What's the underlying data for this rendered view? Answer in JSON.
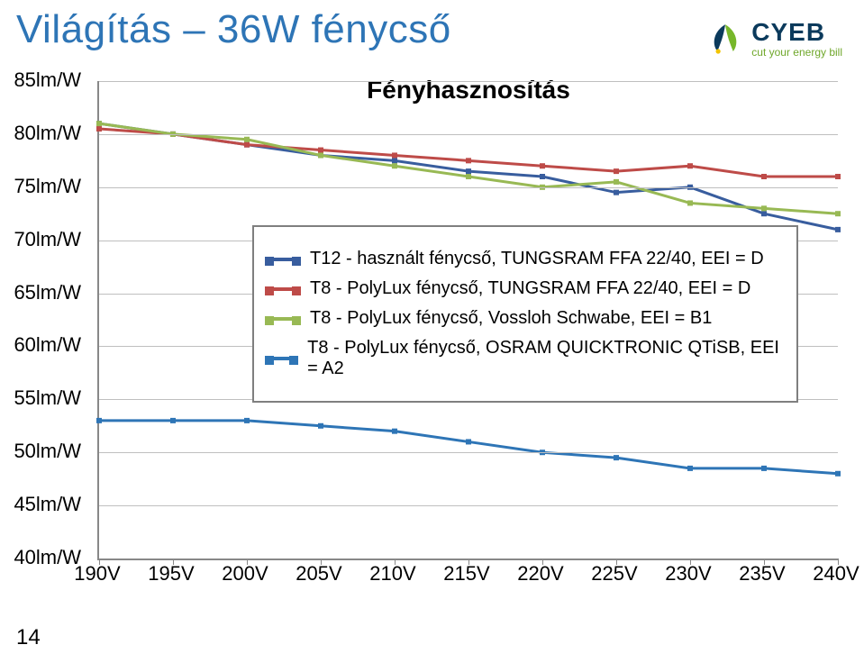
{
  "title": {
    "text": "Világítás – 36W fénycső",
    "color": "#2E75B6",
    "fontsize": 44
  },
  "logo": {
    "brand": "CYEB",
    "sub": "cut your energy bill",
    "brand_color": "#0b3a5c",
    "sub_color": "#6fa72a",
    "leaf_blue": "#0b3a5c",
    "leaf_green": "#77b72a",
    "dot_yellow": "#f2c400"
  },
  "page_number": "14",
  "chart": {
    "title": "Fényhasznosítás",
    "y_ticks": [
      "85lm/W",
      "80lm/W",
      "75lm/W",
      "70lm/W",
      "65lm/W",
      "60lm/W",
      "55lm/W",
      "50lm/W",
      "45lm/W",
      "40lm/W"
    ],
    "x_ticks": [
      "190V",
      "195V",
      "200V",
      "205V",
      "210V",
      "215V",
      "220V",
      "225V",
      "230V",
      "235V",
      "240V"
    ],
    "ylim": [
      40,
      85
    ],
    "xlim": [
      190,
      240
    ],
    "grid_color": "#bfbfbf",
    "axis_color": "#888888",
    "background": "#ffffff",
    "label_fontsize": 22,
    "title_fontsize": 28,
    "line_width": 3,
    "series": [
      {
        "name": "T12 - használt fénycső, TUNGSRAM FFA 22/40, EEI = D",
        "color": "#385D9E",
        "x": [
          190,
          195,
          200,
          205,
          210,
          215,
          220,
          225,
          230,
          235,
          240
        ],
        "y": [
          81,
          80,
          79,
          78,
          77.5,
          76.5,
          76,
          74.5,
          75,
          72.5,
          71
        ]
      },
      {
        "name": "T8 - PolyLux fénycső, TUNGSRAM FFA 22/40, EEI = D",
        "color": "#BE4B48",
        "x": [
          190,
          195,
          200,
          205,
          210,
          215,
          220,
          225,
          230,
          235,
          240
        ],
        "y": [
          80.5,
          80,
          79,
          78.5,
          78,
          77.5,
          77,
          76.5,
          77,
          76,
          76
        ]
      },
      {
        "name": "T8 - PolyLux fénycső, Vossloh Schwabe, EEI = B1",
        "color": "#98B954",
        "x": [
          190,
          195,
          200,
          205,
          210,
          215,
          220,
          225,
          230,
          235,
          240
        ],
        "y": [
          81,
          80,
          79.5,
          78,
          77,
          76,
          75,
          75.5,
          73.5,
          73,
          72.5
        ]
      },
      {
        "name": "T8 - PolyLux fénycső, OSRAM QUICKTRONIC QTiSB, EEI = A2",
        "color": "#2E75B6",
        "x": [
          190,
          195,
          200,
          205,
          210,
          215,
          220,
          225,
          230,
          235,
          240
        ],
        "y": [
          53,
          53,
          53,
          52.5,
          52,
          51,
          50,
          49.5,
          48.5,
          48.5,
          48
        ]
      }
    ],
    "legend": {
      "border_color": "#7f7f7f",
      "bg": "#ffffff",
      "fontsize": 20
    }
  }
}
